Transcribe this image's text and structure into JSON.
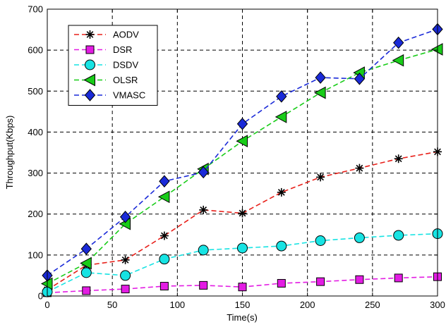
{
  "chart_data": {
    "type": "line",
    "title": "",
    "xlabel": "Time(s)",
    "ylabel": "Throughput(Kbps)",
    "xlim": [
      0,
      300
    ],
    "ylim": [
      0,
      700
    ],
    "xticks": [
      0,
      50,
      100,
      150,
      200,
      250,
      300
    ],
    "yticks": [
      0,
      100,
      200,
      300,
      400,
      500,
      600,
      700
    ],
    "grid": true,
    "grid_style": "dashed",
    "legend_position": "top-left",
    "x": [
      0,
      30,
      60,
      90,
      120,
      150,
      180,
      210,
      240,
      270,
      300
    ],
    "series": [
      {
        "name": "AODV",
        "color": "#e8201a",
        "marker": "asterisk",
        "values": [
          15,
          75,
          88,
          147,
          210,
          202,
          253,
          290,
          312,
          335,
          352
        ]
      },
      {
        "name": "DSR",
        "color": "#e31ce3",
        "marker": "square",
        "values": [
          8,
          13,
          17,
          24,
          26,
          22,
          31,
          35,
          40,
          44,
          47
        ]
      },
      {
        "name": "DSDV",
        "color": "#17e3e3",
        "marker": "circle",
        "values": [
          10,
          57,
          50,
          90,
          112,
          117,
          122,
          135,
          142,
          148,
          152
        ]
      },
      {
        "name": "OLSR",
        "color": "#18cc18",
        "marker": "triangle-left",
        "values": [
          30,
          80,
          176,
          242,
          310,
          378,
          437,
          496,
          545,
          575,
          602
        ]
      },
      {
        "name": "VMASC",
        "color": "#1a2ad8",
        "marker": "diamond",
        "values": [
          50,
          115,
          193,
          280,
          302,
          420,
          487,
          533,
          530,
          618,
          651
        ]
      }
    ]
  }
}
